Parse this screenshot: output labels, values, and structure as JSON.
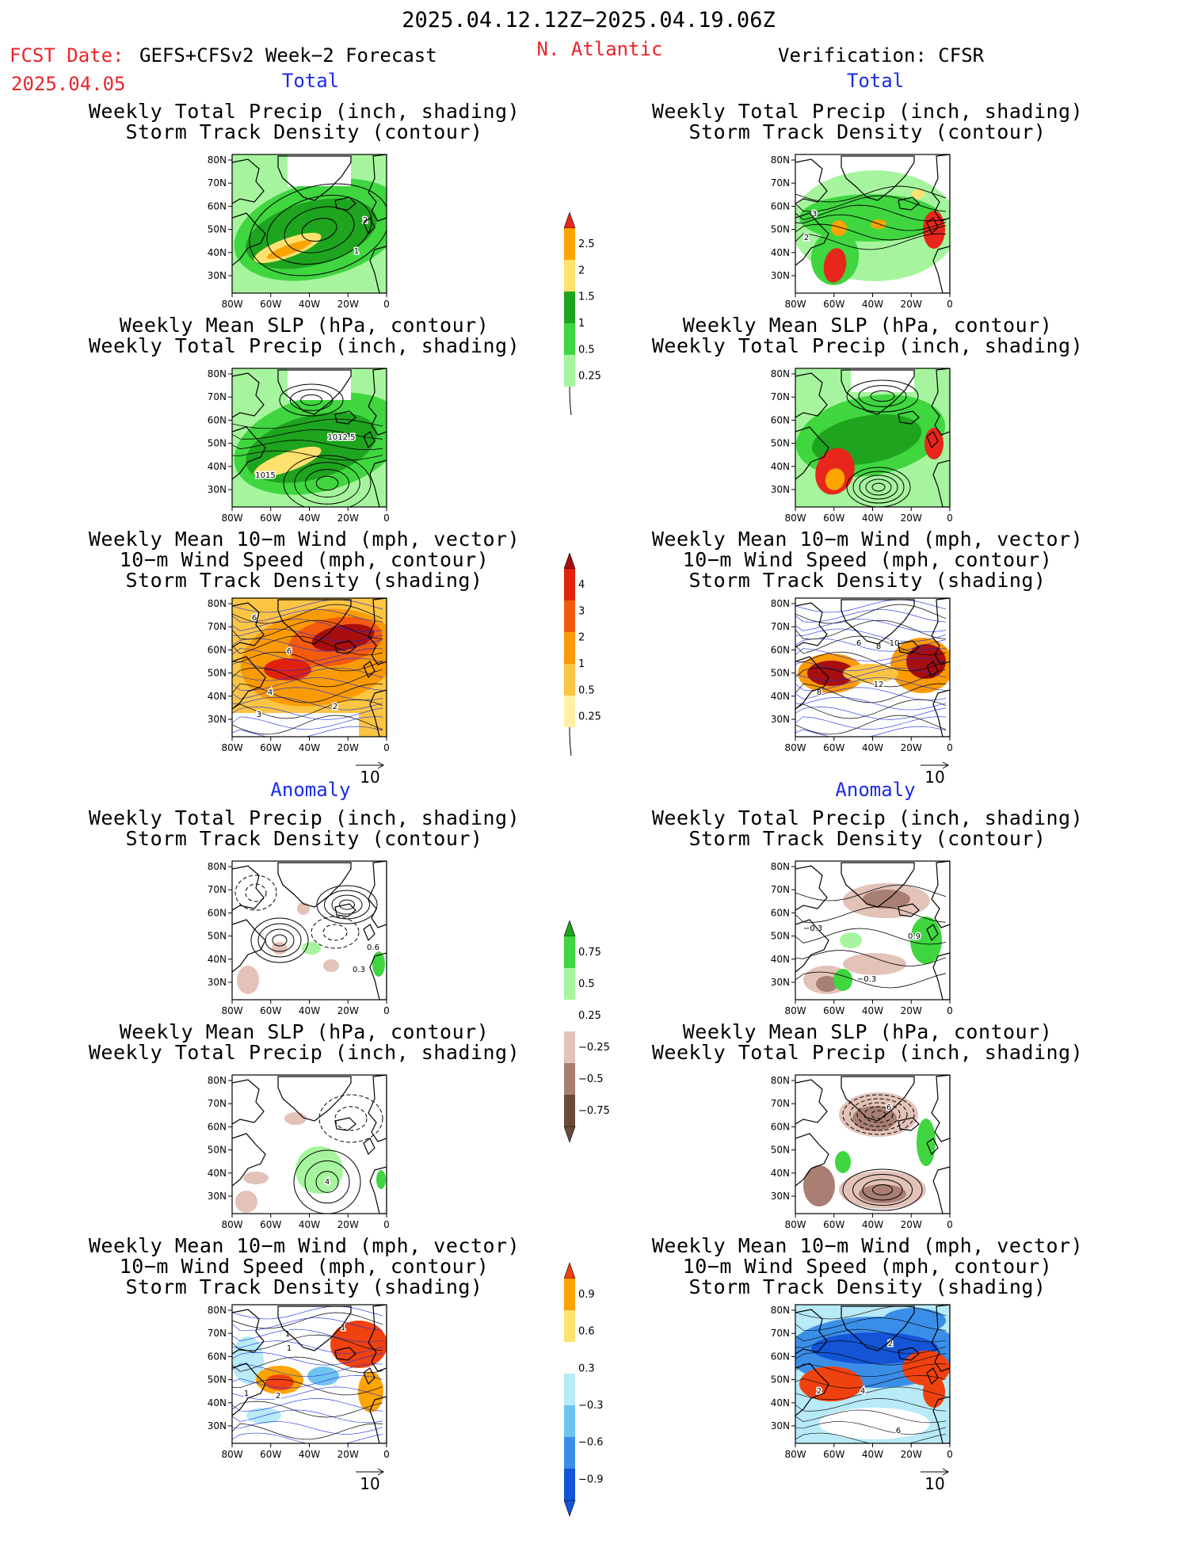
{
  "header": {
    "period": "2025.04.12.12Z−2025.04.19.06Z",
    "fcst_label": "FCST Date:",
    "model": "GEFS+CFSv2 Week−2 Forecast",
    "fcst_date": "2025.04.05",
    "region": "N. Atlantic",
    "verification": "Verification: CFSR"
  },
  "sections": {
    "total": "Total",
    "anomaly": "Anomaly"
  },
  "panel_titles": {
    "precip_track": [
      "Weekly Total Precip (inch, shading)",
      "Storm Track Density (contour)"
    ],
    "slp_precip": [
      "Weekly Mean SLP (hPa, contour)",
      "Weekly Total Precip (inch, shading)"
    ],
    "wind_track": [
      "Weekly Mean 10−m Wind (mph, vector)",
      "10−m Wind Speed (mph, contour)",
      "Storm Track Density (shading)"
    ]
  },
  "axes": {
    "lat_labels": [
      "80N",
      "70N",
      "60N",
      "50N",
      "40N",
      "30N"
    ],
    "lon_labels": [
      "80W",
      "60W",
      "40W",
      "20W",
      "0"
    ]
  },
  "vector_ref": "10",
  "colorbars": {
    "precip_total": {
      "labels": [
        "2.5",
        "2",
        "1.5",
        "1",
        "0.5",
        "0.25"
      ],
      "colors": [
        "#e8261b",
        "#fca400",
        "#ffe16e",
        "#1ea41e",
        "#3fd63f",
        "#a6f59e"
      ]
    },
    "track_total": {
      "labels": [
        "4",
        "3",
        "2",
        "1",
        "0.5",
        "0.25"
      ],
      "colors": [
        "#a80e0e",
        "#e0220c",
        "#f45a0c",
        "#fa9b05",
        "#fbc443",
        "#fff0a6"
      ]
    },
    "precip_anom": {
      "labels": [
        "0.75",
        "0.5",
        "0.25",
        "−0.25",
        "−0.5",
        "−0.75"
      ],
      "colors": [
        "#1ea41e",
        "#3fd63f",
        "#a6f59e",
        "#ffffff",
        "#e3c2b8",
        "#a97f73",
        "#6b4a3c"
      ]
    },
    "track_anom": {
      "labels": [
        "0.9",
        "0.6",
        "0.3",
        "−0.3",
        "−0.6",
        "−0.9"
      ],
      "colors": [
        "#f0420e",
        "#fca400",
        "#ffe16e",
        "#ffffff",
        "#b8eaf7",
        "#6fc4ef",
        "#3a8ee8",
        "#1454d6"
      ]
    }
  },
  "contour_labels": {
    "fcst_precip_track": [
      "2",
      "1"
    ],
    "verif_precip_track": [
      "3",
      "2"
    ],
    "fcst_slp": [
      "1012.5",
      "1015"
    ],
    "fcst_wind": [
      "6",
      "6",
      "4",
      "3",
      "2"
    ],
    "verif_wind": [
      "6",
      "8",
      "10",
      "8",
      "12"
    ],
    "fcst_precip_track_anom": [
      "0.6",
      "0.3"
    ],
    "verif_precip_track_anom": [
      "−0.3",
      "0.9",
      "−0.3"
    ],
    "fcst_slp_anom": [
      "4"
    ],
    "verif_slp_anom": [
      "6"
    ],
    "fcst_wind_anom": [
      "1",
      "1",
      "1",
      "2",
      "1"
    ],
    "verif_wind_anom": [
      "2",
      "2",
      "4",
      "6"
    ]
  }
}
